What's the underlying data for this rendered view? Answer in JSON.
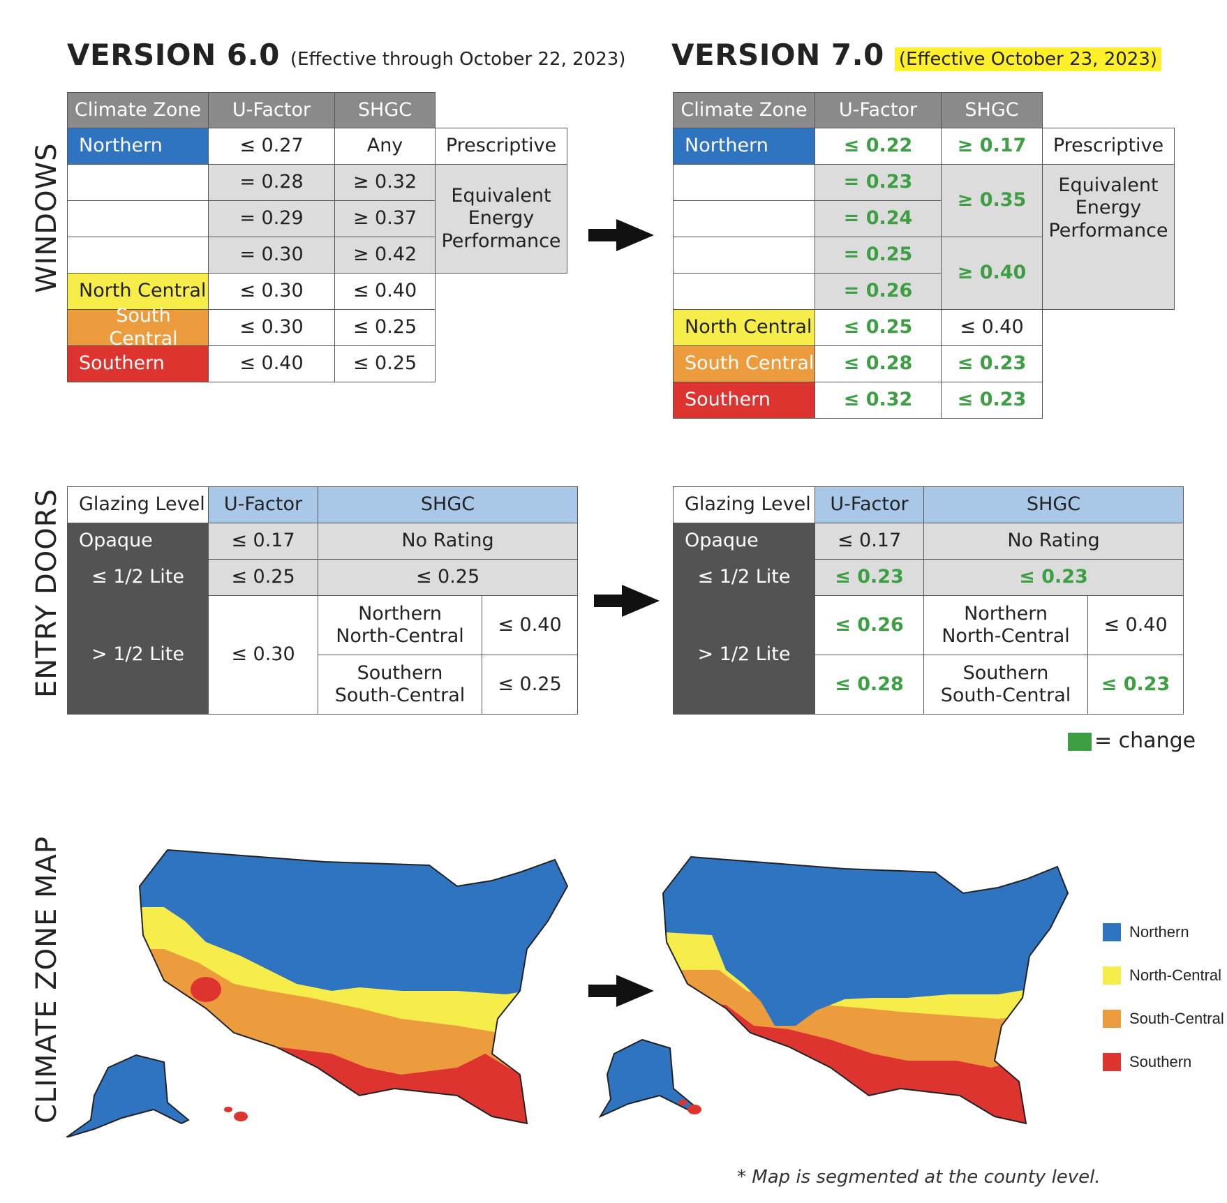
{
  "colors": {
    "northern": "#2f74c0",
    "north_central": "#f6ec4a",
    "south_central": "#ec9c3c",
    "southern": "#de3430",
    "change": "#3d9e44",
    "highlight": "#fff02a"
  },
  "v6": {
    "title": "VERSION 6.0",
    "effective": "(Effective through October 22, 2023)"
  },
  "v7": {
    "title": "VERSION 7.0",
    "effective": "(Effective October 23, 2023)"
  },
  "side_labels": {
    "windows": "WINDOWS",
    "doors": "ENTRY DOORS",
    "map": "CLIMATE ZONE MAP"
  },
  "windows": {
    "headers": {
      "zone": "Climate Zone",
      "ufactor": "U-Factor",
      "shgc": "SHGC"
    },
    "prescriptive": "Prescriptive",
    "equivalent": [
      "Equivalent",
      "Energy",
      "Performance"
    ],
    "zones": {
      "northern": "Northern",
      "north_central": "North Central",
      "south_central": "South Central",
      "southern": "Southern"
    },
    "v6": {
      "northern": {
        "u": "≤ 0.27",
        "s": "Any"
      },
      "eq_rows": [
        {
          "u": "= 0.28",
          "s": "≥ 0.32"
        },
        {
          "u": "= 0.29",
          "s": "≥ 0.37"
        },
        {
          "u": "= 0.30",
          "s": "≥ 0.42"
        }
      ],
      "north_central": {
        "u": "≤ 0.30",
        "s": "≤ 0.40"
      },
      "south_central": {
        "u": "≤ 0.30",
        "s": "≤ 0.25"
      },
      "southern": {
        "u": "≤ 0.40",
        "s": "≤ 0.25"
      }
    },
    "v7": {
      "northern": {
        "u": "≤ 0.22",
        "s": "≥ 0.17"
      },
      "eq_u": [
        "= 0.23",
        "= 0.24",
        "= 0.25",
        "= 0.26"
      ],
      "eq_s": [
        "≥ 0.35",
        "≥ 0.40"
      ],
      "north_central": {
        "u": "≤ 0.25",
        "s": "≤ 0.40"
      },
      "south_central": {
        "u": "≤ 0.28",
        "s": "≤ 0.23"
      },
      "southern": {
        "u": "≤ 0.32",
        "s": "≤ 0.23"
      }
    }
  },
  "doors": {
    "headers": {
      "glazing": "Glazing Level",
      "ufactor": "U-Factor",
      "shgc": "SHGC"
    },
    "levels": {
      "opaque": "Opaque",
      "half": "≤ 1/2 Lite",
      "over": "> 1/2 Lite"
    },
    "zone_groups": {
      "north": [
        "Northern",
        "North-Central"
      ],
      "south": [
        "Southern",
        "South-Central"
      ]
    },
    "v6": {
      "opaque_u": "≤ 0.17",
      "opaque_s": "No Rating",
      "half_u": "≤ 0.25",
      "half_s": "≤ 0.25",
      "over_u": "≤ 0.30",
      "north_s": "≤ 0.40",
      "south_s": "≤ 0.25"
    },
    "v7": {
      "opaque_u": "≤ 0.17",
      "opaque_s": "No Rating",
      "half_u": "≤ 0.23",
      "half_s": "≤ 0.23",
      "north_u": "≤ 0.26",
      "south_u": "≤ 0.28",
      "north_s": "≤ 0.40",
      "south_s": "≤ 0.23"
    }
  },
  "change_legend": "= change",
  "map_legend": [
    "Northern",
    "North-Central",
    "South-Central",
    "Southern"
  ],
  "footnote": "* Map is segmented at the county level."
}
